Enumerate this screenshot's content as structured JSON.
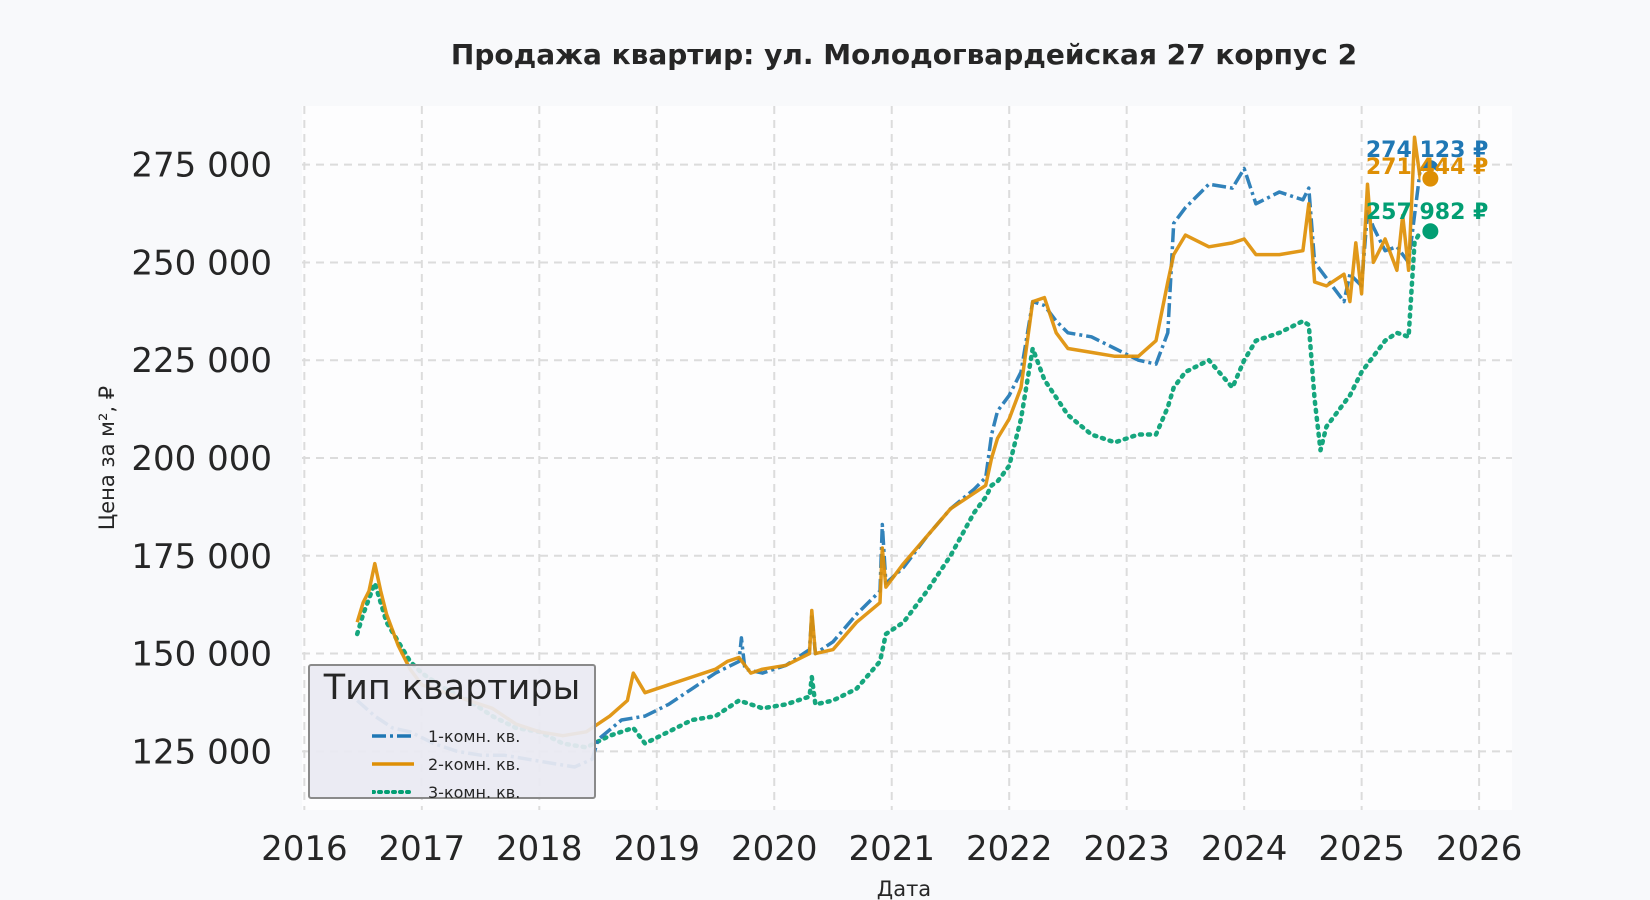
{
  "chart_data": {
    "type": "line",
    "title": "Продажа квартир: ул. Молодогвардейская 27 корпус 2",
    "xlabel": "Дата",
    "ylabel": "Цена за м², ₽",
    "xlim": [
      2015.98,
      2026.28
    ],
    "ylim": [
      110000,
      290000
    ],
    "x_ticks": [
      "2016",
      "2017",
      "2018",
      "2019",
      "2020",
      "2021",
      "2022",
      "2023",
      "2024",
      "2025",
      "2026"
    ],
    "y_ticks": [
      "125 000",
      "150 000",
      "175 000",
      "200 000",
      "225 000",
      "250 000",
      "275 000"
    ],
    "grid": true,
    "legend": {
      "title": "Тип квартиры",
      "placement": "lower-left"
    },
    "series": [
      {
        "name": "1-комн. кв.",
        "color": "#1f77b4",
        "style": "dash-dot",
        "end_label": "274 123 ₽",
        "end_value": 274123,
        "x": [
          2016.45,
          2016.6,
          2016.75,
          2016.9,
          2017.1,
          2017.3,
          2017.5,
          2017.7,
          2017.9,
          2018.1,
          2018.3,
          2018.45,
          2018.5,
          2018.7,
          2018.9,
          2019.1,
          2019.3,
          2019.5,
          2019.7,
          2019.72,
          2019.75,
          2019.9,
          2020.1,
          2020.3,
          2020.32,
          2020.35,
          2020.5,
          2020.7,
          2020.9,
          2020.92,
          2020.95,
          2021.1,
          2021.3,
          2021.5,
          2021.7,
          2021.8,
          2021.85,
          2021.9,
          2022.0,
          2022.1,
          2022.2,
          2022.3,
          2022.4,
          2022.5,
          2022.7,
          2022.9,
          2023.1,
          2023.25,
          2023.35,
          2023.4,
          2023.5,
          2023.7,
          2023.9,
          2024.0,
          2024.1,
          2024.3,
          2024.5,
          2024.55,
          2024.6,
          2024.7,
          2024.85,
          2024.9,
          2025.0,
          2025.05,
          2025.1,
          2025.2,
          2025.3,
          2025.4,
          2025.45,
          2025.5
        ],
        "values": [
          138000,
          134000,
          131000,
          130000,
          127000,
          125000,
          124000,
          124000,
          123000,
          122000,
          121000,
          123000,
          128000,
          133000,
          134000,
          137000,
          141000,
          145000,
          148000,
          154000,
          146000,
          145000,
          147000,
          151000,
          160000,
          150000,
          153000,
          160000,
          166000,
          183000,
          168000,
          172000,
          180000,
          187000,
          192000,
          195000,
          206000,
          212000,
          216000,
          222000,
          240000,
          239000,
          235000,
          232000,
          231000,
          228000,
          225000,
          224000,
          232000,
          260000,
          264000,
          270000,
          269000,
          274000,
          265000,
          268000,
          266000,
          269000,
          250000,
          246000,
          240000,
          247000,
          244000,
          263000,
          259000,
          253000,
          254000,
          250000,
          262000,
          274000
        ]
      },
      {
        "name": "2-комн. кв.",
        "color": "#de8f05",
        "style": "solid",
        "end_label": "271 444 ₽",
        "end_value": 271444,
        "x": [
          2016.45,
          2016.5,
          2016.55,
          2016.6,
          2016.65,
          2016.7,
          2016.8,
          2016.9,
          2017.0,
          2017.2,
          2017.4,
          2017.6,
          2017.8,
          2018.0,
          2018.2,
          2018.4,
          2018.6,
          2018.75,
          2018.8,
          2018.9,
          2019.1,
          2019.3,
          2019.5,
          2019.6,
          2019.7,
          2019.8,
          2019.9,
          2020.1,
          2020.3,
          2020.32,
          2020.35,
          2020.5,
          2020.7,
          2020.9,
          2020.92,
          2020.95,
          2021.1,
          2021.3,
          2021.5,
          2021.7,
          2021.8,
          2021.85,
          2021.9,
          2022.0,
          2022.1,
          2022.2,
          2022.3,
          2022.4,
          2022.5,
          2022.7,
          2022.9,
          2023.1,
          2023.25,
          2023.35,
          2023.4,
          2023.5,
          2023.7,
          2023.9,
          2024.0,
          2024.1,
          2024.3,
          2024.5,
          2024.55,
          2024.6,
          2024.7,
          2024.85,
          2024.9,
          2024.95,
          2025.0,
          2025.05,
          2025.1,
          2025.2,
          2025.3,
          2025.35,
          2025.4,
          2025.45,
          2025.5
        ],
        "values": [
          158000,
          163000,
          166000,
          173000,
          166000,
          160000,
          152000,
          146000,
          142000,
          140000,
          138000,
          136000,
          132000,
          130000,
          129000,
          130000,
          134000,
          138000,
          145000,
          140000,
          142000,
          144000,
          146000,
          148000,
          149000,
          145000,
          146000,
          147000,
          150000,
          161000,
          150000,
          151000,
          158000,
          163000,
          177000,
          167000,
          173000,
          180000,
          187000,
          191000,
          193000,
          200000,
          205000,
          210000,
          218000,
          240000,
          241000,
          232000,
          228000,
          227000,
          226000,
          226000,
          230000,
          245000,
          252000,
          257000,
          254000,
          255000,
          256000,
          252000,
          252000,
          253000,
          265000,
          245000,
          244000,
          247000,
          240000,
          255000,
          242000,
          270000,
          250000,
          256000,
          248000,
          262000,
          248000,
          282000,
          271000
        ]
      },
      {
        "name": "3-комн. кв.",
        "color": "#029e73",
        "style": "dotted",
        "end_label": "257 982 ₽",
        "end_value": 257982,
        "x": [
          2016.45,
          2016.5,
          2016.55,
          2016.6,
          2016.65,
          2016.7,
          2016.8,
          2016.9,
          2017.0,
          2017.2,
          2017.4,
          2017.6,
          2017.8,
          2018.0,
          2018.2,
          2018.4,
          2018.6,
          2018.8,
          2018.9,
          2019.1,
          2019.3,
          2019.5,
          2019.6,
          2019.7,
          2019.8,
          2019.9,
          2020.1,
          2020.3,
          2020.32,
          2020.35,
          2020.5,
          2020.7,
          2020.9,
          2020.95,
          2021.1,
          2021.3,
          2021.5,
          2021.7,
          2021.8,
          2021.85,
          2021.9,
          2022.0,
          2022.1,
          2022.2,
          2022.3,
          2022.5,
          2022.7,
          2022.9,
          2023.1,
          2023.25,
          2023.35,
          2023.4,
          2023.5,
          2023.7,
          2023.9,
          2024.0,
          2024.1,
          2024.3,
          2024.5,
          2024.55,
          2024.6,
          2024.65,
          2024.7,
          2024.85,
          2024.9,
          2025.0,
          2025.1,
          2025.2,
          2025.3,
          2025.4,
          2025.45,
          2025.5
        ],
        "values": [
          155000,
          160000,
          164000,
          168000,
          163000,
          158000,
          153000,
          148000,
          145000,
          141000,
          138000,
          134000,
          131000,
          130000,
          127000,
          126000,
          129000,
          131000,
          127000,
          130000,
          133000,
          134000,
          136000,
          138000,
          137000,
          136000,
          137000,
          139000,
          144000,
          137000,
          138000,
          141000,
          148000,
          155000,
          158000,
          166000,
          175000,
          186000,
          190000,
          193000,
          194000,
          198000,
          210000,
          228000,
          220000,
          211000,
          206000,
          204000,
          206000,
          206000,
          213000,
          218000,
          222000,
          225000,
          218000,
          225000,
          230000,
          232000,
          235000,
          234000,
          215000,
          202000,
          208000,
          214000,
          216000,
          222000,
          226000,
          230000,
          232000,
          231000,
          255000,
          258000
        ]
      }
    ]
  }
}
